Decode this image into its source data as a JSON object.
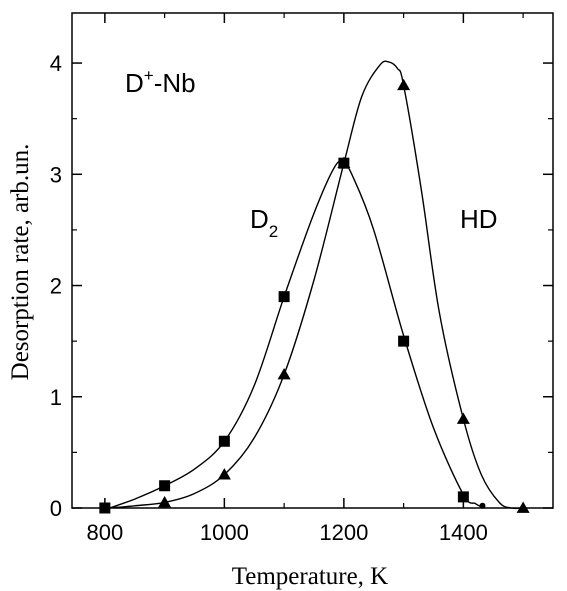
{
  "chart_data": {
    "type": "scatter",
    "xlabel": "Temperature, K",
    "ylabel": "Desorption rate,  arb.un.",
    "xlim": [
      745,
      1550
    ],
    "ylim": [
      0,
      4.45
    ],
    "xticks": [
      800,
      1000,
      1200,
      1400
    ],
    "xticks_minor": [
      900,
      1100,
      1300,
      1500
    ],
    "yticks": [
      0,
      1,
      2,
      3,
      4
    ],
    "grid": false,
    "annotations": {
      "sample": {
        "base": "D",
        "sup": "+",
        "rest": "-Nb"
      },
      "d2": {
        "base": "D",
        "sub": "2"
      },
      "hd": {
        "text": "HD"
      }
    },
    "series": [
      {
        "marker": "square",
        "points": {
          "x": [
            800,
            900,
            1000,
            1100,
            1200,
            1300,
            1400
          ],
          "y": [
            0,
            0.2,
            0.6,
            1.9,
            3.1,
            1.5,
            0.1
          ]
        },
        "curve": {
          "x": [
            808,
            850,
            900,
            950,
            1000,
            1050,
            1100,
            1150,
            1185,
            1200,
            1215,
            1250,
            1300,
            1350,
            1400,
            1420,
            1430
          ],
          "y": [
            0,
            0.08,
            0.2,
            0.35,
            0.6,
            1.1,
            1.9,
            2.65,
            3.07,
            3.1,
            2.98,
            2.5,
            1.55,
            0.72,
            0.12,
            0.04,
            0.01
          ]
        },
        "extra_dot": {
          "x": 1432,
          "y": 0.02
        }
      },
      {
        "marker": "triangle",
        "points": {
          "x": [
            900,
            1000,
            1100,
            1200,
            1300,
            1400,
            1500
          ],
          "y": [
            0.05,
            0.3,
            1.2,
            3.1,
            3.8,
            0.8,
            0
          ]
        },
        "curve": {
          "x": [
            808,
            850,
            900,
            950,
            1000,
            1050,
            1100,
            1150,
            1200,
            1230,
            1260,
            1275,
            1290,
            1300,
            1330,
            1360,
            1400,
            1430,
            1460,
            1480,
            1500
          ],
          "y": [
            0,
            0.02,
            0.05,
            0.13,
            0.3,
            0.63,
            1.2,
            2.05,
            3.1,
            3.7,
            3.98,
            4.01,
            3.95,
            3.8,
            2.85,
            1.75,
            0.8,
            0.3,
            0.05,
            0.0,
            0.0
          ]
        }
      }
    ]
  }
}
